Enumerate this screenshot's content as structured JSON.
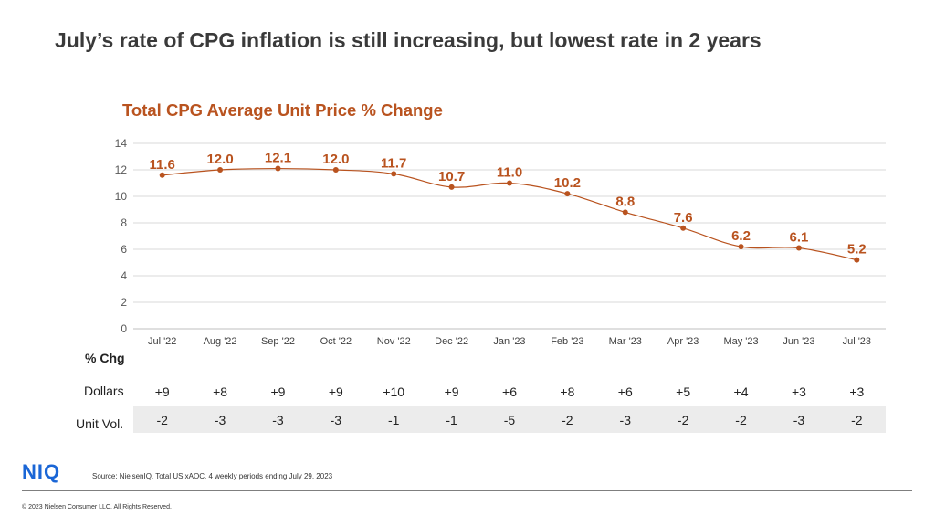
{
  "slide": {
    "title": "July’s rate of CPG inflation is still increasing, but lowest rate in 2 years",
    "source": "Source: NielsenIQ, Total US xAOC,  4 weekly periods ending July 29,  2023",
    "logo": "NIQ",
    "copyright": "© 2023 Nielsen Consumer LLC. All Rights Reserved."
  },
  "colors": {
    "accent": "#b9531f",
    "logo": "#1a66d6",
    "grid": "#d9d9d9"
  },
  "chart_data": {
    "type": "line",
    "title": "Total CPG Average Unit Price % Change",
    "categories": [
      "Jul '22",
      "Aug '22",
      "Sep '22",
      "Oct '22",
      "Nov '22",
      "Dec '22",
      "Jan '23",
      "Feb '23",
      "Mar '23",
      "Apr '23",
      "May '23",
      "Jun '23",
      "Jul '23"
    ],
    "series": [
      {
        "values": [
          11.6,
          12.0,
          12.1,
          12.0,
          11.7,
          10.7,
          11.0,
          10.2,
          8.8,
          7.6,
          6.2,
          6.1,
          5.2
        ]
      }
    ],
    "data_labels": [
      "11.6",
      "12.0",
      "12.1",
      "12.0",
      "11.7",
      "10.7",
      "11.0",
      "10.2",
      "8.8",
      "7.6",
      "6.2",
      "6.1",
      "5.2"
    ],
    "yticks": [
      "0",
      "2",
      "4",
      "6",
      "8",
      "10",
      "12",
      "14"
    ],
    "ylim": [
      0,
      14
    ],
    "grid": true,
    "line_style": "smooth"
  },
  "table": {
    "header": "% Chg",
    "rows": [
      {
        "label": "Dollars",
        "values": [
          "+9",
          "+8",
          "+9",
          "+9",
          "+10",
          "+9",
          "+6",
          "+8",
          "+6",
          "+5",
          "+4",
          "+3",
          "+3"
        ]
      },
      {
        "label": "Unit Vol.",
        "values": [
          "-2",
          "-3",
          "-3",
          "-3",
          "-1",
          "-1",
          "-5",
          "-2",
          "-3",
          "-2",
          "-2",
          "-3",
          "-2"
        ]
      }
    ]
  }
}
